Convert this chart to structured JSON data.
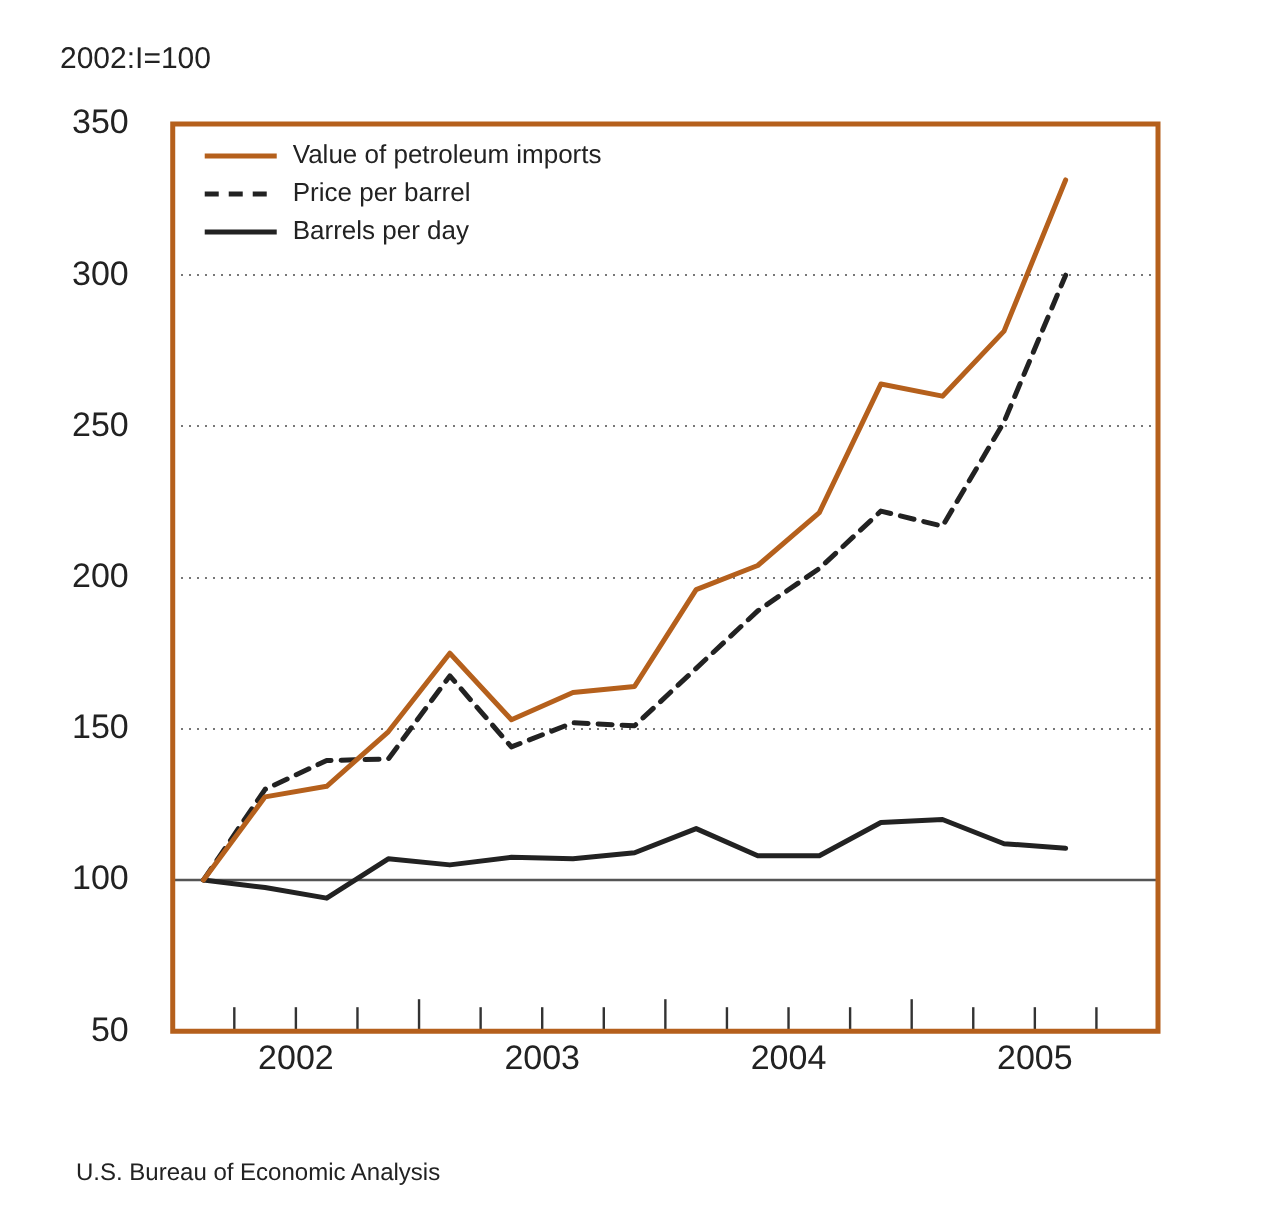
{
  "chart_data": {
    "type": "line",
    "ylabel": "2002:I=100",
    "marker": "none",
    "grid": "y",
    "legend": "top left",
    "x": [
      2002.125,
      2002.375,
      2002.625,
      2002.875,
      2003.125,
      2003.375,
      2003.625,
      2003.875,
      2004.125,
      2004.375,
      2004.625,
      2004.875,
      2005.125,
      2005.375,
      2005.625
    ],
    "xlim": [
      2002,
      2006
    ],
    "xticks": [
      {
        "value": 2002.25,
        "label": null
      },
      {
        "value": 2002.5,
        "label": "2002"
      },
      {
        "value": 2002.75,
        "label": null
      },
      {
        "value": 2003,
        "label": null
      },
      {
        "value": 2003.25,
        "label": null
      },
      {
        "value": 2003.5,
        "label": "2003"
      },
      {
        "value": 2003.75,
        "label": null
      },
      {
        "value": 2004,
        "label": null
      },
      {
        "value": 2004.25,
        "label": null
      },
      {
        "value": 2004.5,
        "label": "2004"
      },
      {
        "value": 2004.75,
        "label": null
      },
      {
        "value": 2005,
        "label": null
      },
      {
        "value": 2005.25,
        "label": null
      },
      {
        "value": 2005.5,
        "label": "2005"
      },
      {
        "value": 2005.75,
        "label": null
      }
    ],
    "ylim": [
      50,
      350
    ],
    "yticks": [
      50,
      100,
      150,
      200,
      250,
      300,
      350
    ],
    "ref_lines": [
      {
        "axis": "y",
        "value": 100,
        "color": "#555555",
        "line_style": "solid"
      }
    ],
    "annotations": [
      "U.S. Bureau of Economic Analysis"
    ],
    "series": [
      {
        "name": "Value of petroleum imports",
        "color": "#b5601c",
        "line_style": "solid",
        "values": [
          100,
          127.5,
          131,
          149,
          175,
          153,
          162,
          164,
          196,
          204,
          221.5,
          264,
          260,
          281.5,
          331.5
        ]
      },
      {
        "name": "Price per barrel",
        "color": "#222222",
        "line_style": "dashed",
        "values": [
          100,
          130,
          139.5,
          140,
          167.5,
          144,
          152,
          151,
          170,
          189,
          203,
          222,
          217,
          251.5,
          300
        ]
      },
      {
        "name": "Barrels per day",
        "color": "#222222",
        "line_style": "solid",
        "values": [
          100,
          97.5,
          94,
          107,
          105,
          107.5,
          107,
          109,
          117,
          108,
          108,
          119,
          120,
          112,
          110.5
        ]
      }
    ]
  }
}
